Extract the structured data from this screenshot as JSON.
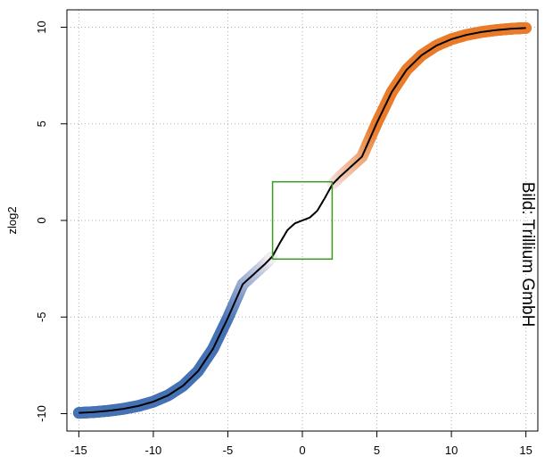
{
  "chart_data": {
    "type": "line",
    "title": "",
    "xlabel": "",
    "ylabel": "zlog2",
    "xlim": [
      -15.8,
      15.8
    ],
    "ylim": [
      -10.9,
      10.9
    ],
    "xticks": [
      -15,
      -10,
      -5,
      0,
      5,
      10,
      15
    ],
    "yticks": [
      -10,
      -5,
      0,
      5,
      10
    ],
    "xtick_labels": [
      "-15",
      "-10",
      "-5",
      "0",
      "5",
      "10",
      "15"
    ],
    "ytick_labels": [
      "-10",
      "-5",
      "0",
      "5",
      "10"
    ],
    "grid": true,
    "series": [
      {
        "name": "",
        "x": [
          -15,
          -14,
          -13,
          -12,
          -11,
          -10,
          -9,
          -8,
          -7,
          -6,
          -5,
          -4,
          -3,
          -2.5,
          -2,
          -1.5,
          -1,
          -0.5,
          0,
          0.5,
          1,
          1.5,
          2,
          2.5,
          3,
          4,
          5,
          6,
          7,
          8,
          9,
          10,
          11,
          12,
          13,
          14,
          15
        ],
        "y": [
          -9.96,
          -9.92,
          -9.85,
          -9.75,
          -9.6,
          -9.38,
          -9.05,
          -8.55,
          -7.8,
          -6.65,
          -5.05,
          -3.3,
          -2.6,
          -2.25,
          -1.85,
          -1.15,
          -0.5,
          -0.15,
          0.0,
          0.15,
          0.5,
          1.15,
          1.85,
          2.25,
          2.6,
          3.3,
          5.05,
          6.65,
          7.8,
          8.55,
          9.05,
          9.38,
          9.6,
          9.75,
          9.85,
          9.92,
          9.96
        ]
      }
    ],
    "colors": {
      "negative": "#4572b5",
      "neutral": "#f6edf3",
      "positive": "#ea7b2a",
      "line": "#000000",
      "box": "#3a9a23",
      "grid": "#b0b0b0"
    },
    "highlight_box": {
      "x": [
        -2,
        2
      ],
      "y": [
        -2,
        2
      ]
    },
    "annotation": "Bild: Trillium GmbH"
  }
}
